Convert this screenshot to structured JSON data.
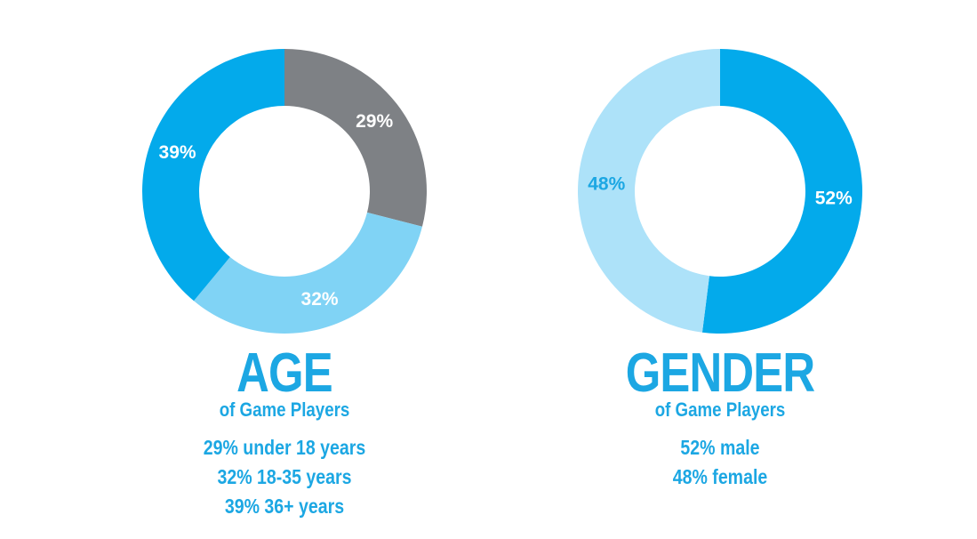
{
  "chart_data": [
    {
      "type": "pie",
      "subtype": "donut",
      "title": "AGE",
      "subtitle": "of Game Players",
      "slices": [
        {
          "label": "under 18 years",
          "value": 29,
          "text": "29%",
          "color": "#7e8185",
          "text_color": "#ffffff"
        },
        {
          "label": "18-35 years",
          "value": 32,
          "text": "32%",
          "color": "#80d3f5",
          "text_color": "#ffffff"
        },
        {
          "label": "36+ years",
          "value": 39,
          "text": "39%",
          "color": "#03aaeb",
          "text_color": "#ffffff"
        }
      ],
      "legend": [
        "29% under 18 years",
        "32% 18-35 years",
        "39% 36+ years"
      ]
    },
    {
      "type": "pie",
      "subtype": "donut",
      "title": "GENDER",
      "subtitle": "of Game Players",
      "slices": [
        {
          "label": "male",
          "value": 52,
          "text": "52%",
          "color": "#03aaeb",
          "text_color": "#ffffff"
        },
        {
          "label": "female",
          "value": 48,
          "text": "48%",
          "color": "#ade2f9",
          "text_color": "#1ca7e3"
        }
      ],
      "legend": [
        "52% male",
        "48% female"
      ]
    }
  ],
  "theme": {
    "accent": "#1ca7e3"
  }
}
